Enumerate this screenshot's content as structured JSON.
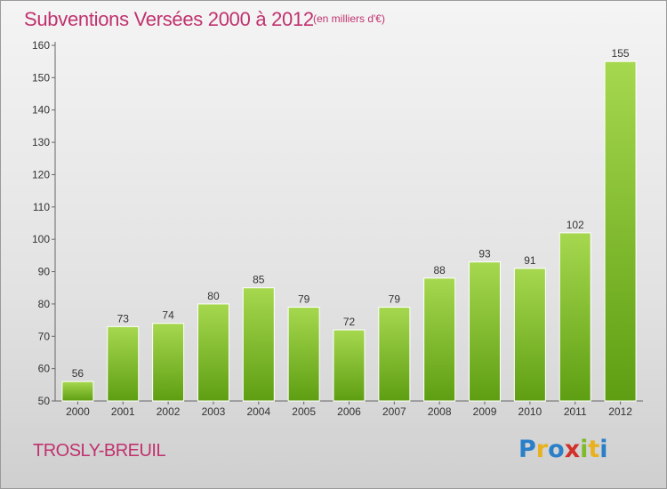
{
  "title": "Subventions Versées 2000 à 2012",
  "subtitle": "(en milliers d'€)",
  "commune": "TROSLY-BREUIL",
  "logo": {
    "letters": [
      "P",
      "r",
      "o",
      "x",
      "i",
      "t",
      "i"
    ],
    "colors": [
      "#2a7fc9",
      "#e8b21e",
      "#2a7fc9",
      "#d2312b",
      "#7dbb2a",
      "#e8b21e",
      "#2a7fc9"
    ]
  },
  "colors": {
    "title": "#c0326e",
    "bar_top": "#a6d84f",
    "bar_bottom": "#5e9e12"
  },
  "chart_data": {
    "type": "bar",
    "title": "Subventions Versées 2000 à 2012",
    "categories": [
      "2000",
      "2001",
      "2002",
      "2003",
      "2004",
      "2005",
      "2006",
      "2007",
      "2008",
      "2009",
      "2010",
      "2011",
      "2012"
    ],
    "values": [
      56,
      73,
      74,
      80,
      85,
      79,
      72,
      79,
      88,
      93,
      91,
      102,
      155
    ],
    "ylim": [
      50,
      160
    ],
    "yticks": [
      50,
      60,
      70,
      80,
      90,
      100,
      110,
      120,
      130,
      140,
      150,
      160
    ],
    "grid": false,
    "xlabel": "",
    "ylabel": ""
  }
}
